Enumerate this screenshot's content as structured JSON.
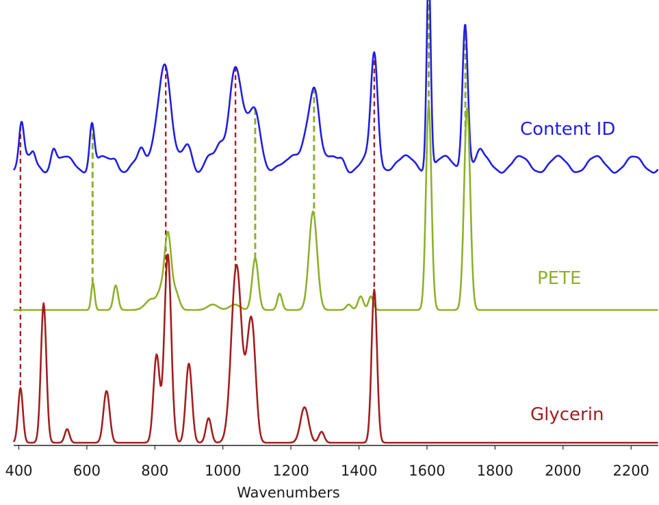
{
  "chart_data": {
    "type": "line",
    "xlabel": "Wavenumbers",
    "xlim": [
      385,
      2280
    ],
    "x_ticks": [
      "400",
      "600",
      "800",
      "1000",
      "1200",
      "1400",
      "1600",
      "1800",
      "2000",
      "2200"
    ],
    "x_tick_values": [
      400,
      600,
      800,
      1000,
      1200,
      1400,
      1600,
      1800,
      2000,
      2200
    ],
    "grid": false,
    "legend": "none",
    "series": [
      {
        "name": "Content ID",
        "color": "#1f1fe0",
        "baseline": 0.04,
        "noise": [
          [
            470,
            0.006
          ],
          [
            980,
            0.008
          ],
          [
            1180,
            0.007
          ],
          [
            1520,
            0.008
          ],
          [
            1780,
            0.015
          ],
          [
            1830,
            0.018
          ],
          [
            1880,
            0.04
          ],
          [
            1930,
            0.035
          ],
          [
            1985,
            0.02
          ],
          [
            2050,
            0.03
          ],
          [
            2100,
            0.02
          ],
          [
            2150,
            0.015
          ],
          [
            2200,
            0.01
          ],
          [
            2250,
            0.02
          ]
        ],
        "peaks": [
          [
            408,
            0.14,
            7
          ],
          [
            443,
            0.03,
            6
          ],
          [
            502,
            0.07,
            8
          ],
          [
            615,
            0.16,
            7
          ],
          [
            684,
            0.03,
            8
          ],
          [
            760,
            0.03,
            8
          ],
          [
            805,
            0.1,
            13
          ],
          [
            830,
            0.37,
            16
          ],
          [
            898,
            0.07,
            11
          ],
          [
            955,
            0.03,
            10
          ],
          [
            990,
            0.04,
            10
          ],
          [
            1037,
            0.38,
            18
          ],
          [
            1080,
            0.13,
            17
          ],
          [
            1100,
            0.09,
            12
          ],
          [
            1160,
            0.02,
            10
          ],
          [
            1253,
            0.15,
            16
          ],
          [
            1272,
            0.22,
            13
          ],
          [
            1350,
            0.03,
            9
          ],
          [
            1445,
            0.39,
            10
          ],
          [
            1500,
            0.01,
            20
          ],
          [
            1605,
            0.75,
            6
          ],
          [
            1712,
            0.54,
            8
          ],
          [
            1756,
            0.03,
            8
          ]
        ]
      },
      {
        "name": "PETE",
        "color": "#8db02b",
        "baseline": 0.0,
        "noise": [],
        "peaks": [
          [
            618,
            0.1,
            5
          ],
          [
            685,
            0.09,
            7
          ],
          [
            790,
            0.04,
            17
          ],
          [
            816,
            0.05,
            9
          ],
          [
            838,
            0.28,
            10
          ],
          [
            862,
            0.06,
            10
          ],
          [
            970,
            0.02,
            15
          ],
          [
            1035,
            0.02,
            15
          ],
          [
            1095,
            0.19,
            9
          ],
          [
            1167,
            0.06,
            7
          ],
          [
            1265,
            0.36,
            12
          ],
          [
            1370,
            0.02,
            8
          ],
          [
            1405,
            0.05,
            8
          ],
          [
            1435,
            0.05,
            7
          ],
          [
            1605,
            0.75,
            8
          ],
          [
            1718,
            0.74,
            9
          ]
        ]
      },
      {
        "name": "Glycerin",
        "color": "#a11e1e",
        "baseline": 0.0,
        "noise": [],
        "peaks": [
          [
            405,
            0.2,
            7
          ],
          [
            473,
            0.51,
            8
          ],
          [
            542,
            0.05,
            7
          ],
          [
            658,
            0.19,
            9
          ],
          [
            805,
            0.32,
            9
          ],
          [
            838,
            0.69,
            10
          ],
          [
            900,
            0.29,
            9
          ],
          [
            958,
            0.09,
            8
          ],
          [
            1040,
            0.65,
            15
          ],
          [
            1078,
            0.3,
            11
          ],
          [
            1090,
            0.23,
            10
          ],
          [
            1240,
            0.13,
            12
          ],
          [
            1290,
            0.04,
            8
          ],
          [
            1445,
            0.56,
            8
          ]
        ]
      }
    ],
    "marker_lines": [
      {
        "x": 405,
        "color": "#a11e1e",
        "from": "Content ID",
        "to": "Glycerin"
      },
      {
        "x": 617,
        "color": "#8db02b",
        "from": "Content ID",
        "to": "PETE"
      },
      {
        "x": 832,
        "color": "#a11e1e",
        "from": "Content ID",
        "to": "Glycerin"
      },
      {
        "x": 1037,
        "color": "#a11e1e",
        "from": "Content ID",
        "to": "Glycerin"
      },
      {
        "x": 1095,
        "color": "#8db02b",
        "from": "Content ID",
        "to": "PETE"
      },
      {
        "x": 1268,
        "color": "#8db02b",
        "from": "Content ID",
        "to": "PETE"
      },
      {
        "x": 1445,
        "color": "#a11e1e",
        "from": "Content ID",
        "to": "Glycerin"
      },
      {
        "x": 1605,
        "color": "#8db02b",
        "from": "Content ID",
        "to": "PETE"
      },
      {
        "x": 1713,
        "color": "#8db02b",
        "from": "Content ID",
        "to": "PETE"
      }
    ]
  }
}
